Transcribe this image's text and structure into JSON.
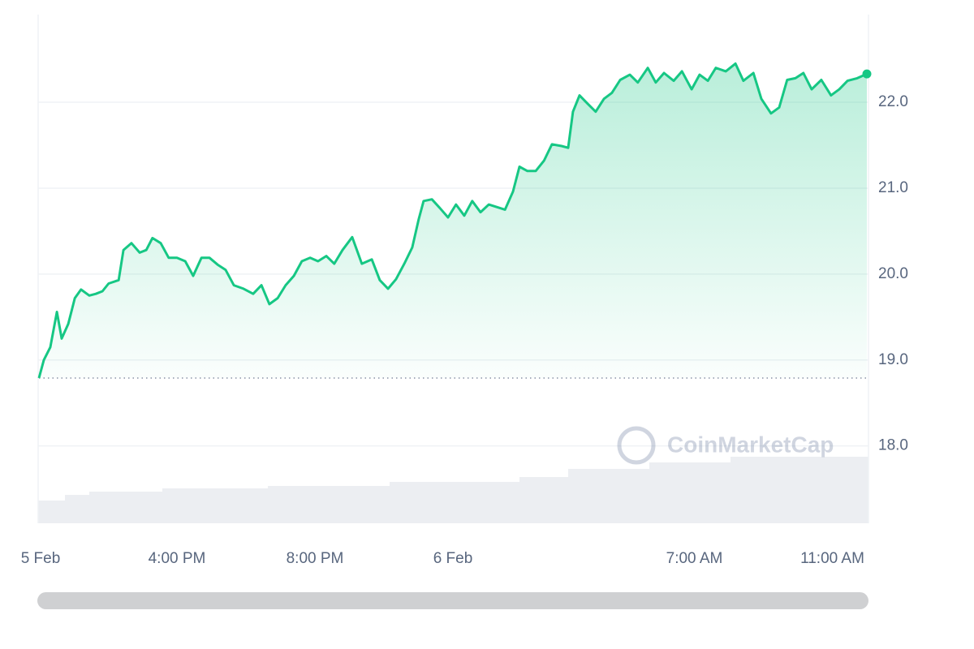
{
  "chart_data": {
    "type": "area",
    "watermark": "CoinMarketCap",
    "color": "#16c784",
    "grid": true,
    "xlim": [
      0,
      24
    ],
    "xticks": [
      {
        "value": 0,
        "label": "5 Feb"
      },
      {
        "value": 4,
        "label": "4:00 PM"
      },
      {
        "value": 8,
        "label": "8:00 PM"
      },
      {
        "value": 12,
        "label": "6 Feb"
      },
      {
        "value": 19,
        "label": "7:00 AM"
      },
      {
        "value": 23,
        "label": "11:00 AM"
      }
    ],
    "ylim": [
      17.1,
      23.02
    ],
    "yticks": [
      {
        "value": 18,
        "label": "18.0"
      },
      {
        "value": 19,
        "label": "19.0"
      },
      {
        "value": 20,
        "label": "20.0"
      },
      {
        "value": 21,
        "label": "21.0"
      },
      {
        "value": 22,
        "label": "22.0"
      }
    ],
    "x": [
      0,
      0.14,
      0.33,
      0.52,
      0.66,
      0.85,
      1.04,
      1.22,
      1.46,
      1.65,
      1.84,
      2.02,
      2.31,
      2.45,
      2.68,
      2.92,
      3.11,
      3.29,
      3.53,
      3.76,
      4.0,
      4.24,
      4.47,
      4.71,
      4.94,
      5.18,
      5.41,
      5.65,
      5.93,
      6.21,
      6.45,
      6.68,
      6.92,
      7.15,
      7.39,
      7.62,
      7.86,
      8.09,
      8.33,
      8.56,
      8.8,
      9.08,
      9.36,
      9.65,
      9.88,
      10.12,
      10.35,
      10.59,
      10.82,
      11.01,
      11.15,
      11.39,
      11.62,
      11.86,
      12.09,
      12.33,
      12.56,
      12.8,
      13.04,
      13.27,
      13.51,
      13.74,
      13.93,
      14.16,
      14.4,
      14.64,
      14.87,
      15.15,
      15.34,
      15.48,
      15.67,
      15.91,
      16.14,
      16.38,
      16.61,
      16.85,
      17.13,
      17.36,
      17.65,
      17.88,
      18.12,
      18.4,
      18.64,
      18.92,
      19.15,
      19.39,
      19.62,
      19.91,
      20.19,
      20.42,
      20.71,
      20.94,
      21.22,
      21.46,
      21.69,
      21.93,
      22.16,
      22.4,
      22.68,
      22.96,
      23.2,
      23.44,
      23.72,
      24.0
    ],
    "values": [
      18.79,
      19.0,
      19.15,
      19.56,
      19.25,
      19.42,
      19.72,
      19.82,
      19.75,
      19.77,
      19.8,
      19.89,
      19.93,
      20.28,
      20.36,
      20.25,
      20.28,
      20.42,
      20.36,
      20.19,
      20.19,
      20.15,
      19.98,
      20.19,
      20.19,
      20.11,
      20.05,
      19.87,
      19.83,
      19.77,
      19.87,
      19.65,
      19.72,
      19.87,
      19.98,
      20.15,
      20.19,
      20.15,
      20.21,
      20.12,
      20.28,
      20.43,
      20.12,
      20.17,
      19.93,
      19.83,
      19.94,
      20.12,
      20.31,
      20.64,
      20.85,
      20.87,
      20.77,
      20.66,
      20.81,
      20.68,
      20.85,
      20.72,
      20.81,
      20.78,
      20.75,
      20.96,
      21.25,
      21.2,
      21.2,
      21.32,
      21.51,
      21.49,
      21.47,
      21.89,
      22.08,
      21.98,
      21.89,
      22.04,
      22.11,
      22.26,
      22.32,
      22.23,
      22.4,
      22.23,
      22.34,
      22.25,
      22.36,
      22.15,
      22.32,
      22.25,
      22.4,
      22.36,
      22.45,
      22.25,
      22.34,
      22.04,
      21.87,
      21.94,
      22.26,
      22.28,
      22.34,
      22.15,
      22.26,
      22.08,
      22.15,
      22.25,
      22.28,
      22.33
    ]
  }
}
